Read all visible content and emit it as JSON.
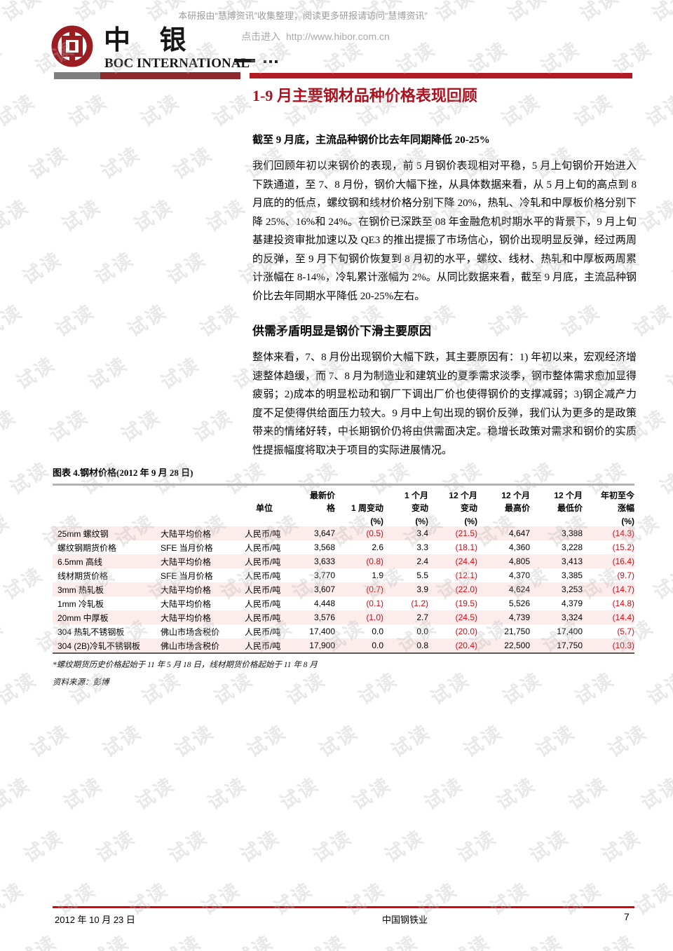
{
  "watermark": {
    "text": "试读"
  },
  "header": {
    "notice_line1": "本研报由“慧博资讯”收集整理，阅读更多研报请访问“慧博资讯”",
    "link_prefix": "点击进入",
    "link_url": "http://www.hibor.com.cn",
    "logo_cn": "中 银",
    "logo_en": "BOC INTERNATIONAL"
  },
  "article": {
    "title": "1-9 月主要钢材品种价格表现回顾",
    "section1_heading": "截至 9 月底，主流品种钢价比去年同期降低 20-25%",
    "section1_body": "我们回顾年初以来钢价的表现，前 5 月钢价表现相对平稳，5 月上旬钢价开始进入下跌通道，至 7、8 月份，钢价大幅下挫，从具体数据来看，从 5 月上旬的高点到 8 月底的的低点，螺纹钢和线材价格分别下降 20%，热轧、冷轧和中厚板价格分别下降 25%、16%和 24%。在钢价已深跌至 08 年金融危机时期水平的背景下，9 月上旬基建投资审批加速以及 QE3 的推出提振了市场信心，钢价出现明显反弹，经过两周的反弹，至 9 月下旬钢价恢复到 8 月初的水平，螺纹、线材、热轧和中厚板两周累计涨幅在 8-14%，冷轧累计涨幅为 2%。从同比数据来看，截至 9 月底，主流品种钢价比去年同期水平降低 20-25%左右。",
    "section2_heading": "供需矛盾明显是钢价下滑主要原因",
    "section2_body": "整体来看，7、8 月份出现钢价大幅下跌，其主要原因有：1) 年初以来，宏观经济增速整体趋缓，而 7、8 月为制造业和建筑业的夏季需求淡季，钢市整体需求愈加显得疲弱；2)成本的明显松动和钢厂下调出厂价也使得钢价的支撑减弱；3)钢企减产力度不足使得供给面压力较大。9 月中上旬出现的钢价反弹，我们认为更多的是政策带来的情绪好转，中长期钢价仍将由供需面决定。稳增长政策对需求和钢价的实质性提振幅度将取决于项目的实际进展情况。"
  },
  "table": {
    "caption": "图表 4.钢材价格(2012 年 9 月 28 日)",
    "header_rows": [
      [
        "",
        "",
        "",
        "最新价",
        "",
        "1 个月",
        "12 个月",
        "12 个月",
        "12 个月",
        "年初至今"
      ],
      [
        "",
        "",
        "单位",
        "格",
        "1 周变动",
        "变动",
        "变动",
        "最高价",
        "最低价",
        "涨幅"
      ],
      [
        "",
        "",
        "",
        "",
        "(%)",
        "(%)",
        "(%)",
        "",
        "",
        "(%)"
      ]
    ],
    "rows": [
      [
        "25mm 螺纹钢",
        "大陆平均价格",
        "人民币/吨",
        "3,647",
        "(0.5)",
        "3.4",
        "(21.5)",
        "4,647",
        "3,388",
        "(14.3)"
      ],
      [
        "螺纹钢期货价格",
        "SFE 当月价格",
        "人民币/吨",
        "3,568",
        "2.6",
        "3.3",
        "(18.1)",
        "4,360",
        "3,228",
        "(15.2)"
      ],
      [
        "6.5mm 高线",
        "大陆平均价格",
        "人民币/吨",
        "3,633",
        "(0.8)",
        "2.4",
        "(24.4)",
        "4,805",
        "3,413",
        "(16.4)"
      ],
      [
        "线材期货价格",
        "SFE 当月价格",
        "人民币/吨",
        "3,770",
        "1.9",
        "5.5",
        "(12.1)",
        "4,370",
        "3,385",
        "(9.7)"
      ],
      [
        "3mm 热轧板",
        "大陆平均价格",
        "人民币/吨",
        "3,607",
        "(0.7)",
        "3.9",
        "(22.0)",
        "4,624",
        "3,253",
        "(14.7)"
      ],
      [
        "1mm 冷轧板",
        "大陆平均价格",
        "人民币/吨",
        "4,448",
        "(0.1)",
        "(1.2)",
        "(19.5)",
        "5,526",
        "4,379",
        "(14.8)"
      ],
      [
        "20mm 中厚板",
        "大陆平均价格",
        "人民币/吨",
        "3,576",
        "(1.0)",
        "2.7",
        "(24.5)",
        "4,739",
        "3,324",
        "(14.4)"
      ],
      [
        "304 热轧不锈钢板",
        "佛山市场含税价",
        "人民币/吨",
        "17,400",
        "0.0",
        "0.0",
        "(20.0)",
        "21,750",
        "17,400",
        "(5.7)"
      ],
      [
        "304 (2B)冷轧不锈钢板",
        "佛山市场含税价",
        "人民币/吨",
        "17,900",
        "0.0",
        "0.8",
        "(20.4)",
        "22,500",
        "17,750",
        "(10.3)"
      ]
    ],
    "footnote": "*螺纹期货历史价格起始于 11 年 5 月 18 日，线材期货价格起始于 11 年 8 月",
    "source": "资料来源：彭博"
  },
  "footer": {
    "date": "2012 年 10 月 23 日",
    "center": "中国钢铁业",
    "page": "7"
  },
  "colors": {
    "brand_red": "#9b1c21",
    "bar_red": "#b01b24",
    "title_red": "#ab1220",
    "negative_red": "#e8000d",
    "row_pink": "#fdecec"
  }
}
